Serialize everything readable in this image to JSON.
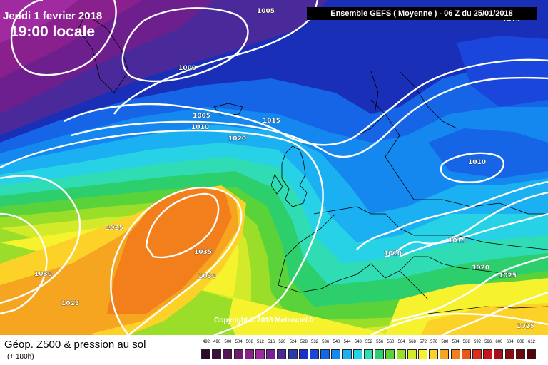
{
  "header": {
    "date": "Jeudi 1 fevrier 2018",
    "time": "19:00 locale",
    "run": "Ensemble GEFS  ( Moyenne )  -  06 Z du 25/01/2018"
  },
  "copyright": "Copyright © 2018 Meteociel.fr",
  "footer": {
    "title": "Géop. Z500 & pression au sol",
    "lead": "(+ 180h)"
  },
  "legend": {
    "labels": [
      "492",
      "496",
      "500",
      "504",
      "508",
      "512",
      "516",
      "520",
      "524",
      "528",
      "532",
      "536",
      "540",
      "544",
      "548",
      "552",
      "556",
      "560",
      "564",
      "568",
      "572",
      "576",
      "580",
      "584",
      "588",
      "592",
      "596",
      "600",
      "604",
      "608",
      "612"
    ],
    "colors": [
      "#2a0a2a",
      "#3c0e3c",
      "#551455",
      "#701a70",
      "#8a208a",
      "#a028a0",
      "#7a1f9a",
      "#4b2a98",
      "#2a3aa8",
      "#1c2fc8",
      "#1a46dc",
      "#1565e6",
      "#1588f0",
      "#1ab0f2",
      "#28d2e6",
      "#30dcb4",
      "#2ccf6c",
      "#5ad23a",
      "#9ade2a",
      "#d2ea2a",
      "#f6f22e",
      "#fcd228",
      "#f6a520",
      "#f27e1c",
      "#ec5618",
      "#e02a1a",
      "#c8141a",
      "#aa101a",
      "#8c0c14",
      "#6e080e",
      "#500508"
    ]
  },
  "isobar_labels": [
    "1005",
    "1015",
    "1000",
    "1005",
    "1010",
    "1015",
    "1020",
    "1010",
    "1025",
    "1035",
    "1030",
    "1030",
    "1025",
    "1010",
    "1015",
    "1020",
    "1025",
    "1025"
  ],
  "colors": {
    "isobar": "#ffffff",
    "header_box": "#000000"
  }
}
